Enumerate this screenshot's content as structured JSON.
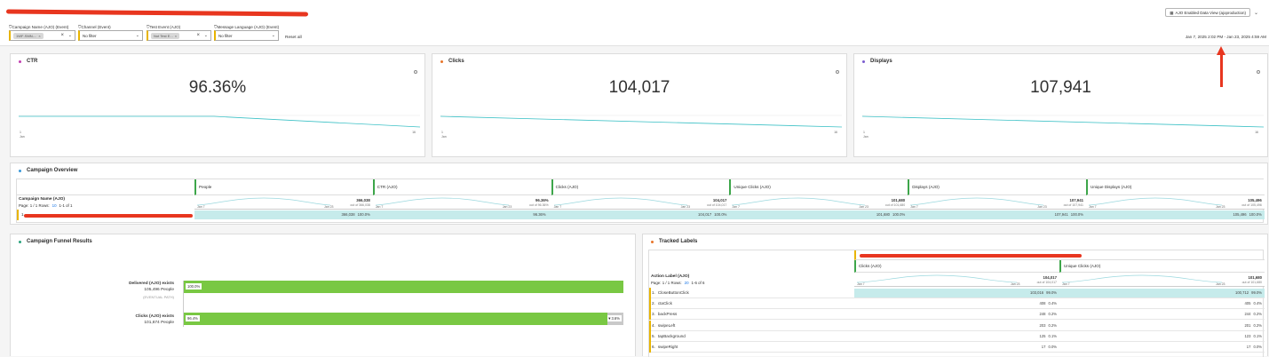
{
  "header": {
    "dataview_label": "AJO Enabled Data View (ajoproduction)",
    "date_range": "Jan 7, 2025 2:02 PM - Jan 23, 2025 4:59 AM"
  },
  "filters": [
    {
      "label": "Campaign Name (AJO) (Event)",
      "value": "1WF-SMN-..."
    },
    {
      "label": "Channel (Event)",
      "value": "No filter"
    },
    {
      "label": "Test Event (AJO)",
      "value": "Not Test E..."
    },
    {
      "label": "Message Language (AJO) (Event)",
      "value": "No filter"
    }
  ],
  "reset_label": "Reset all",
  "kpis": [
    {
      "title": "CTR",
      "value": "96.36%",
      "color": "#c23fb0",
      "x_start": "1",
      "x_start_sub": "Jan",
      "x_end": "16"
    },
    {
      "title": "Clicks",
      "value": "104,017",
      "color": "#e8752b",
      "x_start": "1",
      "x_start_sub": "Jan",
      "x_end": "16"
    },
    {
      "title": "Displays",
      "value": "107,941",
      "color": "#7b5ccf",
      "x_start": "1",
      "x_start_sub": "Jan",
      "x_end": "16"
    }
  ],
  "overview": {
    "title": "Campaign Overview",
    "dim_label": "Campaign Name (AJO)",
    "page_info": "Page: 1 / 1 Rows:",
    "rows_count": "10",
    "range": "1-1 of 1",
    "row_num": "1.",
    "axis_start": "Jan 7",
    "axis_end": "Jan 23",
    "metrics": [
      {
        "name": "People",
        "total": "366,038",
        "outof": "out of 366,038",
        "cell": "366,038",
        "pct": "100.0%"
      },
      {
        "name": "CTR (AJO)",
        "total": "96.36%",
        "outof": "out of 96.36%",
        "cell": "96.36%",
        "pct": ""
      },
      {
        "name": "Clicks (AJO)",
        "total": "104,017",
        "outof": "out of 104,017",
        "cell": "104,017",
        "pct": "100.0%"
      },
      {
        "name": "Unique Clicks (AJO)",
        "total": "101,680",
        "outof": "out of 101,680",
        "cell": "101,680",
        "pct": "100.0%"
      },
      {
        "name": "Displays (AJO)",
        "total": "107,941",
        "outof": "out of 107,941",
        "cell": "107,941",
        "pct": "100.0%"
      },
      {
        "name": "Unique Displays (AJO)",
        "total": "105,496",
        "outof": "out of 105,496",
        "cell": "105,496",
        "pct": "100.0%"
      }
    ]
  },
  "funnel": {
    "title": "Campaign Funnel Results",
    "steps": [
      {
        "name": "Delivered (AJO) exists",
        "people": "105,496 People",
        "pct": "100.0%",
        "ratio": 1.0,
        "drop": ""
      },
      {
        "name": "Clicks (AJO) exists",
        "people": "101,674 People",
        "pct": "96.4%",
        "ratio": 0.964,
        "drop": "▼3.6%"
      }
    ],
    "path_label": "(EVENTUAL PATH)"
  },
  "tracked": {
    "title": "Tracked Labels",
    "dim_label": "Action Label (AJO)",
    "page_info": "Page: 1 / 1 Rows:",
    "rows_count": "20",
    "range": "1-6 of 6",
    "axis_start": "Jan 7",
    "axis_end": "Jan 23",
    "metrics": [
      {
        "name": "Clicks (AJO)",
        "total": "104,017",
        "outof": "out of 104,017"
      },
      {
        "name": "Unique Clicks (AJO)",
        "total": "101,680",
        "outof": "out of 101,680"
      }
    ],
    "rows": [
      {
        "num": "1.",
        "label": "CloseButtonClick",
        "c1": "103,016",
        "p1": "99.0%",
        "c2": "100,712",
        "p2": "99.0%"
      },
      {
        "num": "2.",
        "label": "ctaClick",
        "c1": "408",
        "p1": "0.4%",
        "c2": "405",
        "p2": "0.4%"
      },
      {
        "num": "3.",
        "label": "backPress",
        "c1": "248",
        "p1": "0.2%",
        "c2": "244",
        "p2": "0.2%"
      },
      {
        "num": "4.",
        "label": "swipeLeft",
        "c1": "203",
        "p1": "0.2%",
        "c2": "201",
        "p2": "0.2%"
      },
      {
        "num": "5.",
        "label": "tapBackground",
        "c1": "125",
        "p1": "0.1%",
        "c2": "123",
        "p2": "0.1%"
      },
      {
        "num": "6.",
        "label": "swipeRight",
        "c1": "17",
        "p1": "0.0%",
        "c2": "17",
        "p2": "0.0%"
      }
    ]
  }
}
